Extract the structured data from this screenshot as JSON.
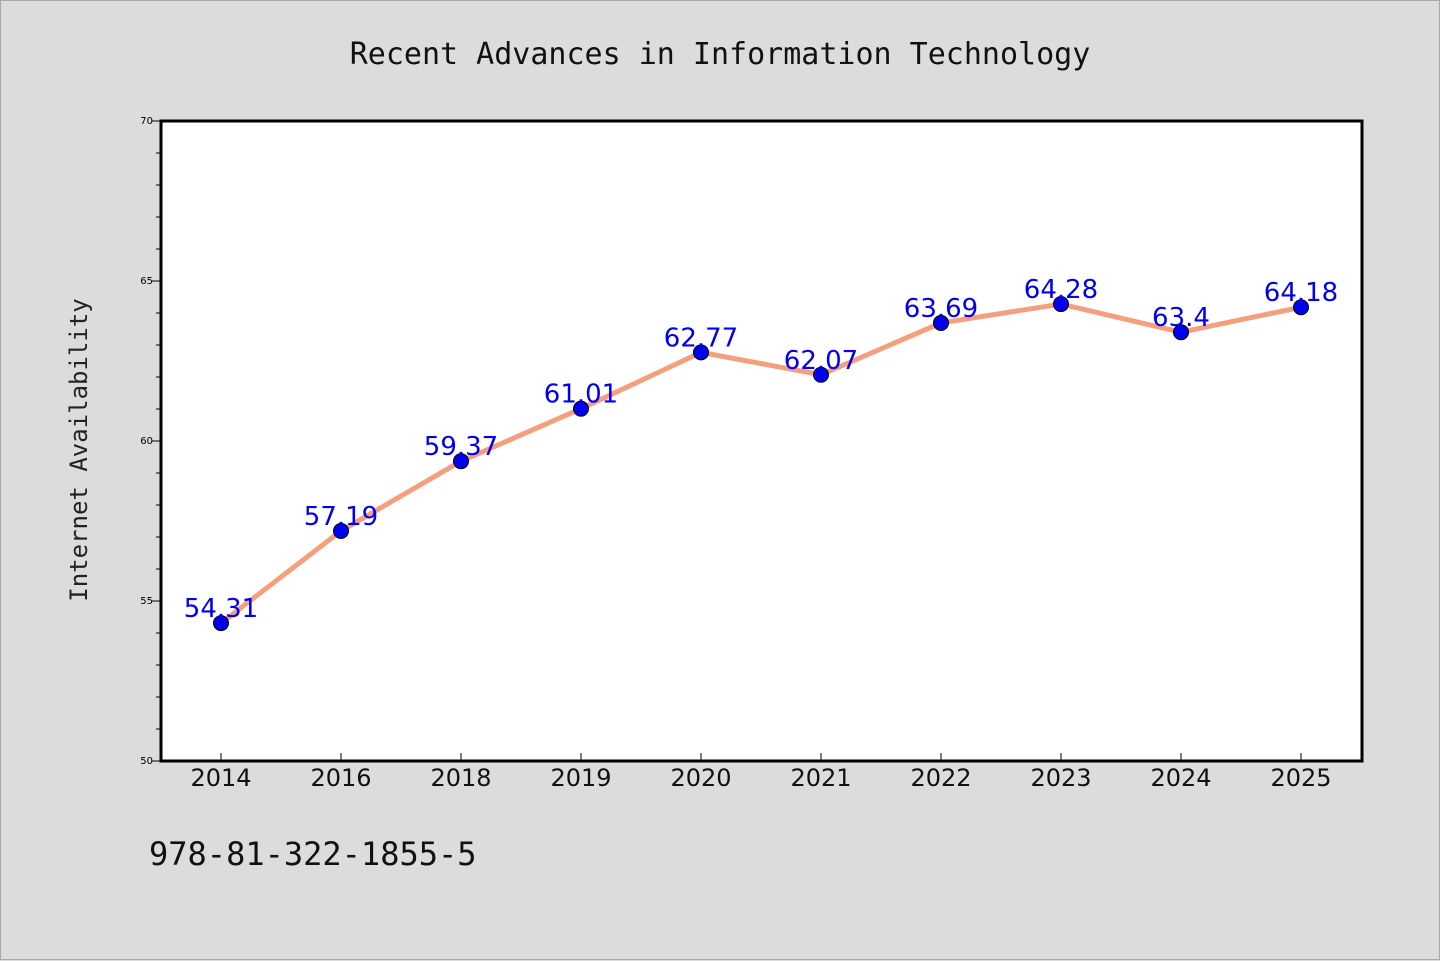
{
  "chart_data": {
    "type": "line",
    "title": "Recent Advances in Information Technology",
    "xlabel": "",
    "ylabel": "Internet Availability",
    "categories": [
      "2014",
      "2016",
      "2018",
      "2019",
      "2020",
      "2021",
      "2022",
      "2023",
      "2024",
      "2025"
    ],
    "series": [
      {
        "values": [
          54.31,
          57.19,
          59.37,
          61.01,
          62.77,
          62.07,
          63.69,
          64.28,
          63.4,
          64.18
        ],
        "data_labels": [
          "54.31",
          "57.19",
          "59.37",
          "61.01",
          "62.77",
          "62.07",
          "63.69",
          "64.28",
          "63.4",
          "64.18"
        ]
      }
    ],
    "ylim": [
      50,
      70
    ],
    "y_major_ticks": [
      50,
      55,
      60,
      65,
      70
    ],
    "y_tick_labels": [
      "50",
      "55",
      "60",
      "65",
      "70"
    ],
    "grid": false,
    "legend": "none",
    "colors": {
      "line": "#f4a07e",
      "marker": "#0000ee",
      "marker_edge": "#000000",
      "data_label": "#0000ee",
      "background": "#dcdcdc",
      "plot_background": "#ffffff"
    }
  },
  "footer": {
    "code": "978-81-322-1855-5"
  }
}
